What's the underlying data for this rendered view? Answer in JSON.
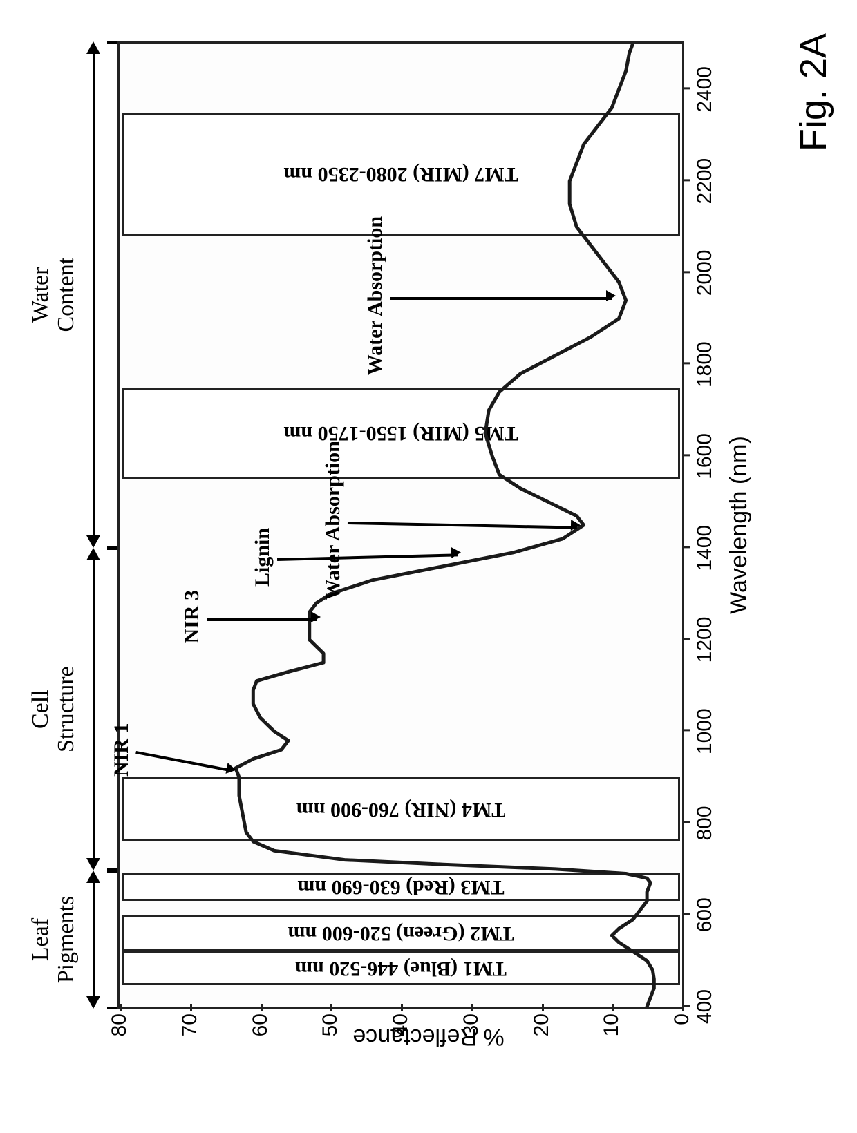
{
  "figure_label": "Fig. 2A",
  "chart": {
    "type": "line",
    "xlabel": "Wavelength (nm)",
    "ylabel": "% Reflectance",
    "xlim": [
      400,
      2500
    ],
    "ylim": [
      0,
      80
    ],
    "xtick_step": 200,
    "ytick_step": 10,
    "label_fontsize": 34,
    "tick_fontsize": 30,
    "line_color": "#1a1a1a",
    "line_width": 5,
    "background_color": "#ffffff",
    "border_color": "#222222",
    "annotation_font": "Georgia, serif",
    "tick_font": "Arial, sans-serif",
    "top_segments": [
      {
        "label_line1": "Leaf",
        "label_line2": "Pigments",
        "xmin": 400,
        "xmax": 700
      },
      {
        "label_line1": "Cell",
        "label_line2": "Structure",
        "xmin": 700,
        "xmax": 1400
      },
      {
        "label_line1": "Water",
        "label_line2": "Content",
        "xmin": 1400,
        "xmax": 2500
      }
    ],
    "bands": [
      {
        "label": "TM1 (Blue) 446-520 nm",
        "xmin": 446,
        "xmax": 520,
        "ymax": 80
      },
      {
        "label": "TM2 (Green)  520-600 nm",
        "xmin": 520,
        "xmax": 600,
        "ymax": 80
      },
      {
        "label": "TM3 (Red) 630-690 nm",
        "xmin": 630,
        "xmax": 690,
        "ymax": 80
      },
      {
        "label": "TM4 (NIR) 760-900 nm",
        "xmin": 760,
        "xmax": 900,
        "ymax": 80
      },
      {
        "label": "TM5 (MIR) 1550-1750 nm",
        "xmin": 1550,
        "xmax": 1750,
        "ymax": 80
      },
      {
        "label": "TM7 (MIR) 2080-2350 nm",
        "xmin": 2080,
        "xmax": 2350,
        "ymax": 80
      }
    ],
    "annotations": [
      {
        "text": "NIR 1",
        "x": 960,
        "y_text": 78,
        "arrow_to_x": 920,
        "arrow_to_y": 64
      },
      {
        "text": "NIR 3",
        "x": 1250,
        "y_text": 68,
        "arrow_to_x": 1250,
        "arrow_to_y": 52
      },
      {
        "text": "Lignin",
        "x": 1380,
        "y_text": 58,
        "arrow_to_x": 1390,
        "arrow_to_y": 32
      },
      {
        "text": "Water Absorption",
        "x": 1460,
        "y_text": 48,
        "arrow_to_x": 1450,
        "arrow_to_y": 15
      },
      {
        "text": "Water Absorption",
        "x": 1950,
        "y_text": 42,
        "arrow_to_x": 1950,
        "arrow_to_y": 10
      }
    ],
    "data": [
      [
        400,
        5
      ],
      [
        420,
        4.5
      ],
      [
        440,
        4
      ],
      [
        460,
        4
      ],
      [
        480,
        4.2
      ],
      [
        500,
        5
      ],
      [
        520,
        7
      ],
      [
        540,
        9
      ],
      [
        555,
        10
      ],
      [
        570,
        9
      ],
      [
        590,
        7
      ],
      [
        610,
        6
      ],
      [
        630,
        5
      ],
      [
        650,
        5
      ],
      [
        670,
        4.5
      ],
      [
        680,
        5
      ],
      [
        690,
        8
      ],
      [
        700,
        18
      ],
      [
        710,
        34
      ],
      [
        720,
        48
      ],
      [
        740,
        58
      ],
      [
        760,
        61
      ],
      [
        780,
        62
      ],
      [
        820,
        62.5
      ],
      [
        860,
        63
      ],
      [
        900,
        63
      ],
      [
        920,
        63.5
      ],
      [
        940,
        61
      ],
      [
        960,
        57
      ],
      [
        980,
        56
      ],
      [
        1000,
        58
      ],
      [
        1030,
        60
      ],
      [
        1060,
        61
      ],
      [
        1090,
        61
      ],
      [
        1110,
        60.5
      ],
      [
        1130,
        56
      ],
      [
        1150,
        51
      ],
      [
        1170,
        51
      ],
      [
        1200,
        53
      ],
      [
        1230,
        53
      ],
      [
        1260,
        53
      ],
      [
        1280,
        52
      ],
      [
        1300,
        50
      ],
      [
        1330,
        44
      ],
      [
        1360,
        34
      ],
      [
        1390,
        24
      ],
      [
        1420,
        17
      ],
      [
        1450,
        14
      ],
      [
        1470,
        15
      ],
      [
        1500,
        19
      ],
      [
        1530,
        23
      ],
      [
        1560,
        26
      ],
      [
        1600,
        27
      ],
      [
        1650,
        28
      ],
      [
        1700,
        27.5
      ],
      [
        1740,
        26
      ],
      [
        1780,
        23
      ],
      [
        1820,
        18
      ],
      [
        1860,
        13
      ],
      [
        1900,
        9
      ],
      [
        1940,
        8
      ],
      [
        1980,
        9
      ],
      [
        2020,
        11
      ],
      [
        2060,
        13
      ],
      [
        2100,
        15
      ],
      [
        2150,
        16
      ],
      [
        2200,
        16
      ],
      [
        2240,
        15
      ],
      [
        2280,
        14
      ],
      [
        2320,
        12
      ],
      [
        2360,
        10
      ],
      [
        2400,
        9
      ],
      [
        2440,
        8
      ],
      [
        2480,
        7.5
      ],
      [
        2500,
        7
      ]
    ]
  }
}
